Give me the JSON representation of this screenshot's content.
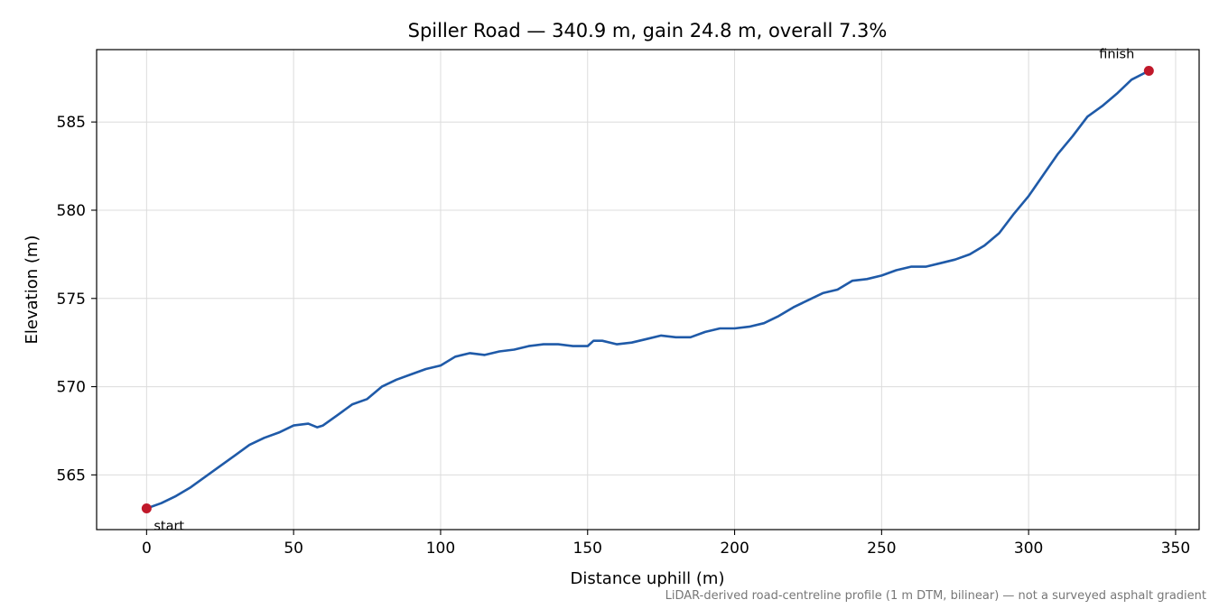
{
  "chart_data": {
    "type": "line",
    "title": "Spiller Road — 340.9 m, gain 24.8 m, overall 7.3%",
    "xlabel": "Distance uphill (m)",
    "ylabel": "Elevation (m)",
    "xlim": [
      -17,
      358
    ],
    "ylim": [
      561.9,
      589.1
    ],
    "xticks": [
      0,
      50,
      100,
      150,
      200,
      250,
      300,
      350
    ],
    "yticks": [
      565,
      570,
      575,
      580,
      585
    ],
    "grid": true,
    "line_color": "#1f5aa8",
    "marker_color": "#c0182a",
    "series": [
      {
        "x": [
          0,
          5,
          10,
          15,
          20,
          25,
          30,
          35,
          40,
          45,
          50,
          55,
          58,
          60,
          65,
          70,
          75,
          80,
          85,
          90,
          95,
          100,
          105,
          110,
          115,
          120,
          125,
          130,
          135,
          140,
          145,
          150,
          152,
          155,
          160,
          165,
          170,
          175,
          180,
          185,
          190,
          195,
          200,
          205,
          210,
          215,
          220,
          225,
          230,
          235,
          240,
          245,
          250,
          255,
          260,
          265,
          270,
          275,
          280,
          285,
          290,
          295,
          300,
          305,
          310,
          315,
          320,
          325,
          330,
          335,
          340.9
        ],
        "y": [
          563.1,
          563.4,
          563.8,
          564.3,
          564.9,
          565.5,
          566.1,
          566.7,
          567.1,
          567.4,
          567.8,
          567.9,
          567.7,
          567.8,
          568.4,
          569.0,
          569.3,
          570.0,
          570.4,
          570.7,
          571.0,
          571.2,
          571.7,
          571.9,
          571.8,
          572.0,
          572.1,
          572.3,
          572.4,
          572.4,
          572.3,
          572.3,
          572.6,
          572.6,
          572.4,
          572.5,
          572.7,
          572.9,
          572.8,
          572.8,
          573.1,
          573.3,
          573.3,
          573.4,
          573.6,
          574.0,
          574.5,
          574.9,
          575.3,
          575.5,
          576.0,
          576.1,
          576.3,
          576.6,
          576.8,
          576.8,
          577.0,
          577.2,
          577.5,
          578.0,
          578.7,
          579.8,
          580.8,
          582.0,
          583.2,
          584.2,
          585.3,
          585.9,
          586.6,
          587.4,
          587.9
        ]
      }
    ],
    "annotations": [
      {
        "text": "start",
        "x": 0,
        "y": 563.1
      },
      {
        "text": "finish",
        "x": 340.9,
        "y": 587.9
      }
    ]
  },
  "footnote": "LiDAR-derived road-centreline profile (1 m DTM, bilinear) — not a surveyed asphalt gradient"
}
